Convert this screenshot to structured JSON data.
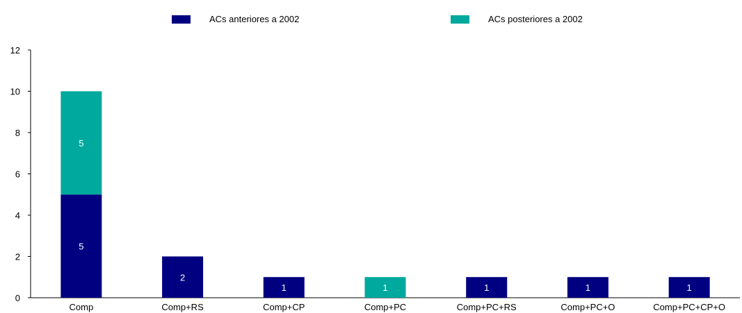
{
  "chart_data": {
    "type": "bar",
    "stacked": true,
    "categories": [
      "Comp",
      "Comp+RS",
      "Comp+CP",
      "Comp+PC",
      "Comp+PC+RS",
      "Comp+PC+O",
      "Comp+PC+CP+O"
    ],
    "series": [
      {
        "name": "ACs anteriores a 2002",
        "color": "#000080",
        "values": [
          5,
          2,
          1,
          0,
          1,
          1,
          1
        ]
      },
      {
        "name": "ACs posteriores a 2002",
        "color": "#00A99D",
        "values": [
          5,
          0,
          0,
          1,
          0,
          0,
          0
        ]
      }
    ],
    "ylim": [
      0,
      12
    ],
    "yticks": [
      0,
      2,
      4,
      6,
      8,
      10,
      12
    ],
    "title": "",
    "xlabel": "",
    "ylabel": "",
    "legend_position": "top",
    "grid": false
  }
}
